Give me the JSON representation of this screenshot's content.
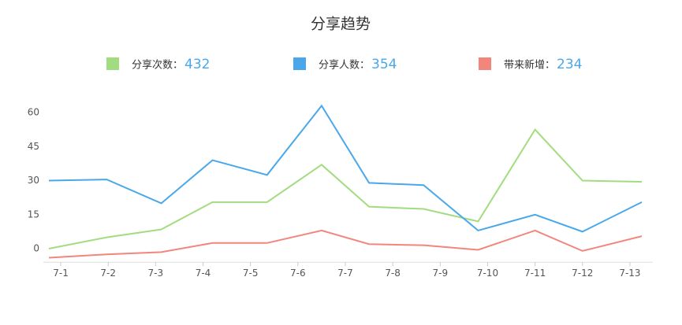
{
  "chart_data": {
    "type": "line",
    "title": "分享趋势",
    "x": [
      0.75,
      1.97,
      3.12,
      4.2,
      5.35,
      6.5,
      7.5,
      8.65,
      9.8,
      11,
      12,
      13.25
    ],
    "xlim": [
      0.75,
      13.35
    ],
    "xticks": [
      {
        "value": 1,
        "label": "7-1"
      },
      {
        "value": 2,
        "label": "7-2"
      },
      {
        "value": 3,
        "label": "7-3"
      },
      {
        "value": 4,
        "label": "7-4"
      },
      {
        "value": 5,
        "label": "7-5"
      },
      {
        "value": 6,
        "label": "7-6"
      },
      {
        "value": 7,
        "label": "7-7"
      },
      {
        "value": 8,
        "label": "7-8"
      },
      {
        "value": 9,
        "label": "7-9"
      },
      {
        "value": 10,
        "label": "7-10"
      },
      {
        "value": 11,
        "label": "7-11"
      },
      {
        "value": 12,
        "label": "7-12"
      },
      {
        "value": 13,
        "label": "7-13"
      }
    ],
    "ylim": [
      -6,
      65
    ],
    "yticks": [
      0,
      15,
      30,
      45,
      60
    ],
    "series": [
      {
        "name": "分享次数：",
        "total": 432,
        "color": "#a3dc80",
        "values": [
          0,
          5,
          8.5,
          20.5,
          20.5,
          37,
          18.5,
          17.5,
          12,
          52.5,
          30,
          29.5
        ]
      },
      {
        "name": "分享人数：",
        "total": 354,
        "color": "#4aa8ea",
        "values": [
          30,
          30.5,
          20,
          39,
          32.5,
          63,
          29,
          28,
          8,
          15,
          7.5,
          20.5
        ]
      },
      {
        "name": "带来新增：",
        "total": 234,
        "color": "#f2867c",
        "values": [
          -4,
          -2.5,
          -1.5,
          2.5,
          2.5,
          8,
          2,
          1.5,
          -0.5,
          8,
          -1,
          5.5
        ]
      }
    ]
  }
}
